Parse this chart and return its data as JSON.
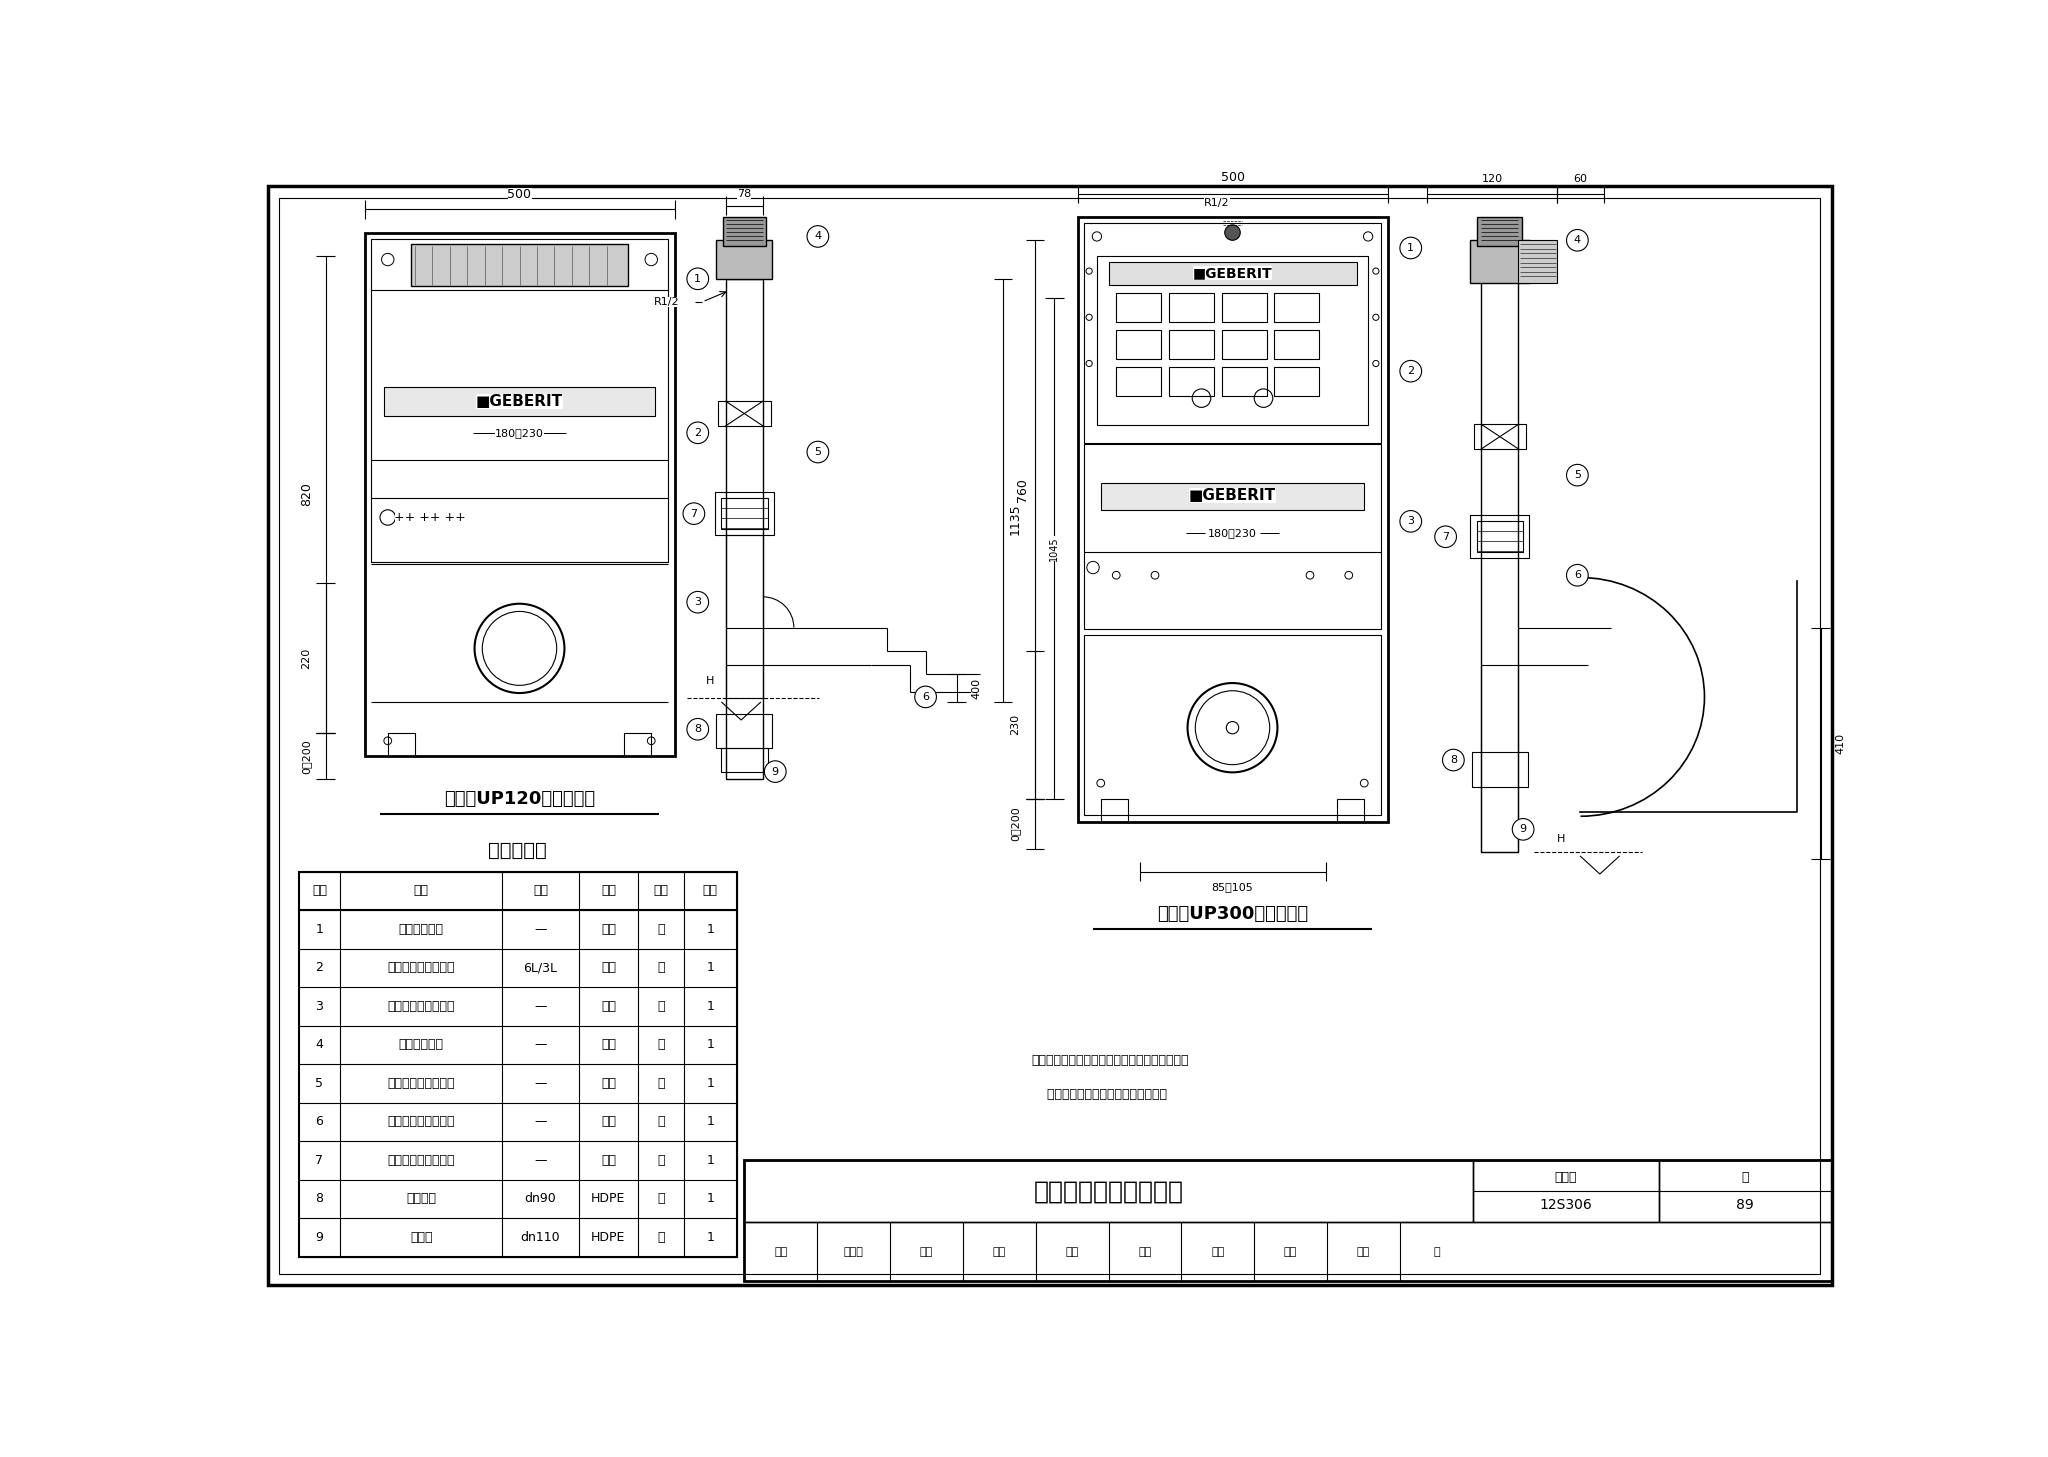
{
  "bg_color": "#ffffff",
  "title_block": {
    "drawing_title": "隐蔽水箱大样图（一）",
    "atlas_no_label": "图集号",
    "atlas_no": "12S306",
    "page_label": "页",
    "page_no": "89"
  },
  "caption_left": "顶按式UP120隐蔽式水箱",
  "caption_right": "前按式UP300隐蔽式水箱",
  "table_title": "主要材料表",
  "table_headers": [
    "编号",
    "名称",
    "规格",
    "材料",
    "单位",
    "数量"
  ],
  "table_rows": [
    [
      "1",
      "金属框架组件",
      "—",
      "型钢",
      "套",
      "1"
    ],
    [
      "2",
      "水箱及冲水弯管组件",
      "6L/3L",
      "配套",
      "套",
      "1"
    ],
    [
      "3",
      "固定卡座和卡圈组件",
      "—",
      "配套",
      "套",
      "1"
    ],
    [
      "4",
      "面板固定组件",
      "—",
      "配套",
      "套",
      "1"
    ],
    [
      "5",
      "马桶进水口连接组件",
      "—",
      "配套",
      "套",
      "1"
    ],
    [
      "6",
      "马桶排污口连接组件",
      "—",
      "配套",
      "套",
      "1"
    ],
    [
      "7",
      "马桶进水口连接组件",
      "—",
      "配套",
      "套",
      "1"
    ],
    [
      "8",
      "厕具弯头",
      "dn90",
      "HDPE",
      "个",
      "1"
    ],
    [
      "9",
      "下接套",
      "dn110",
      "HDPE",
      "个",
      "1"
    ]
  ],
  "note_line1": "注：本图安装根据上海吉博力房屋卫生设备工程",
  "note_line2": "    技术有限公司提供的技术资料编制。",
  "staff_row": [
    "审核",
    "冯旭东",
    "岫岭",
    "校对",
    "徐琴",
    "绘琴",
    "设计",
    "张夏",
    "颜夏",
    "页"
  ]
}
